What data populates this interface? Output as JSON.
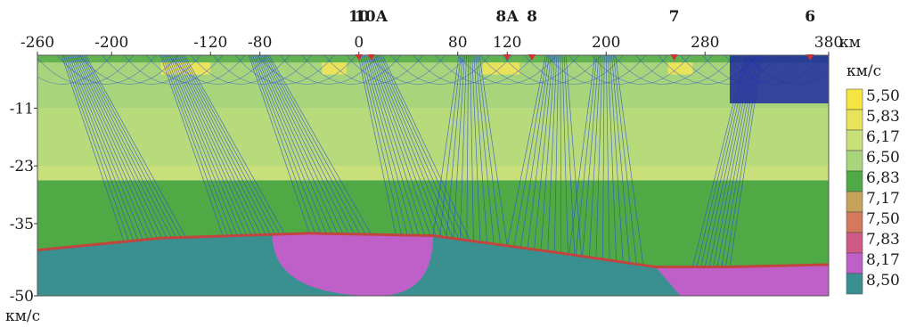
{
  "chart_data": {
    "type": "heatmap",
    "x_axis": {
      "range": [
        -260,
        380
      ],
      "ticks": [
        -260,
        -200,
        -120,
        -80,
        0,
        80,
        120,
        200,
        280,
        380
      ],
      "tick_labels": [
        "-260",
        "-200",
        "-120",
        "-80",
        "0",
        "80",
        "120",
        "200",
        "280",
        "380"
      ],
      "unit": "км"
    },
    "y_axis": {
      "range": [
        0,
        -50
      ],
      "ticks": [
        -11,
        -23,
        -35,
        -50
      ],
      "tick_labels": [
        "-11",
        "-23",
        "-35",
        "-50"
      ],
      "unit": "км/с"
    },
    "stations": [
      {
        "label": "10",
        "x": 0
      },
      {
        "label": "10А",
        "x": 10
      },
      {
        "label": "8А",
        "x": 120
      },
      {
        "label": "8",
        "x": 140
      },
      {
        "label": "7",
        "x": 255
      },
      {
        "label": "6",
        "x": 365
      }
    ],
    "colorbar": {
      "title": "км/с",
      "levels": [
        {
          "label": "5,50",
          "value": 5.5,
          "color": "#f4e542"
        },
        {
          "label": "5,83",
          "value": 5.83,
          "color": "#e8e35a"
        },
        {
          "label": "6,17",
          "value": 6.17,
          "color": "#c9e07a"
        },
        {
          "label": "6,50",
          "value": 6.5,
          "color": "#a8d57c"
        },
        {
          "label": "6,83",
          "value": 6.83,
          "color": "#4faa46"
        },
        {
          "label": "7,17",
          "value": 7.17,
          "color": "#c7a25a"
        },
        {
          "label": "7,50",
          "value": 7.5,
          "color": "#d47a5c"
        },
        {
          "label": "7,83",
          "value": 7.83,
          "color": "#cf5a86"
        },
        {
          "label": "8,17",
          "value": 8.17,
          "color": "#bf60c8"
        },
        {
          "label": "8,50",
          "value": 8.5,
          "color": "#3a9090"
        }
      ]
    },
    "moho_depth_profile": [
      {
        "x": -260,
        "depth": -40.5
      },
      {
        "x": -160,
        "depth": -38.0
      },
      {
        "x": -40,
        "depth": -37.0
      },
      {
        "x": 60,
        "depth": -37.5
      },
      {
        "x": 160,
        "depth": -41.0
      },
      {
        "x": 240,
        "depth": -44.0
      },
      {
        "x": 300,
        "depth": -44.0
      },
      {
        "x": 380,
        "depth": -43.5
      }
    ],
    "high_velocity_bodies": [
      {
        "velocity": 8.17,
        "x_range": [
          -70,
          60
        ]
      },
      {
        "velocity": 8.17,
        "x_range": [
          240,
          380
        ]
      }
    ],
    "ray_paths": "seismic ray traces (blue)",
    "grid": false,
    "legend_position": "right"
  },
  "colors": {
    "rays": "#2a48d6",
    "moho": "#c2443e",
    "background": "#ffffff"
  }
}
